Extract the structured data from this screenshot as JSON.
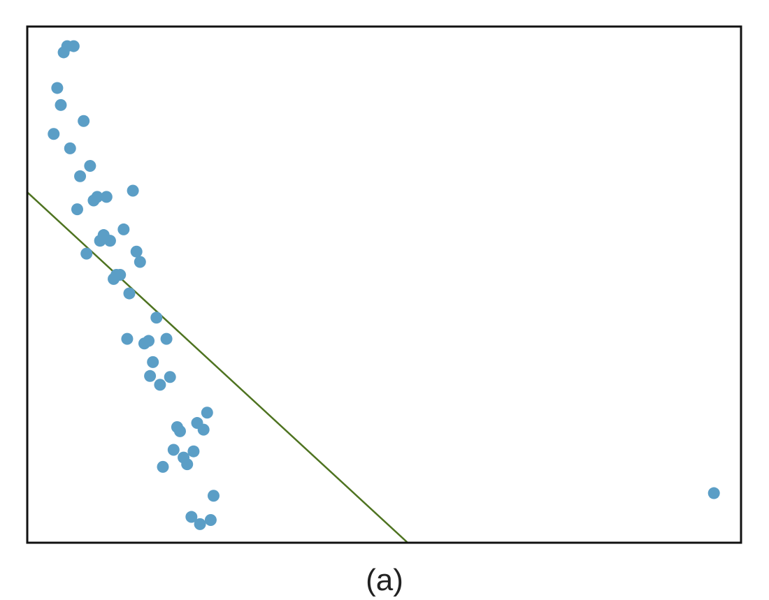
{
  "caption": "(a)",
  "chart_data": {
    "type": "scatter",
    "title": "",
    "xlabel": "",
    "ylabel": "",
    "xlim": [
      0,
      100
    ],
    "ylim": [
      0,
      100
    ],
    "grid": false,
    "axes_ticks": false,
    "point_color": "#5b9ec6",
    "line_color": "#4e7320",
    "frame_color": "#111111",
    "points": [
      {
        "x": 5.6,
        "y": 96.2
      },
      {
        "x": 6.5,
        "y": 96.2
      },
      {
        "x": 5.1,
        "y": 95.0
      },
      {
        "x": 4.2,
        "y": 88.1
      },
      {
        "x": 4.7,
        "y": 84.8
      },
      {
        "x": 7.9,
        "y": 81.7
      },
      {
        "x": 3.7,
        "y": 79.2
      },
      {
        "x": 6.0,
        "y": 76.4
      },
      {
        "x": 8.8,
        "y": 73.0
      },
      {
        "x": 7.4,
        "y": 71.0
      },
      {
        "x": 14.8,
        "y": 68.2
      },
      {
        "x": 9.3,
        "y": 66.3
      },
      {
        "x": 9.8,
        "y": 67.0
      },
      {
        "x": 11.1,
        "y": 67.0
      },
      {
        "x": 7.0,
        "y": 64.6
      },
      {
        "x": 13.5,
        "y": 60.7
      },
      {
        "x": 10.7,
        "y": 59.6
      },
      {
        "x": 10.2,
        "y": 58.5
      },
      {
        "x": 11.6,
        "y": 58.5
      },
      {
        "x": 8.3,
        "y": 56.0
      },
      {
        "x": 15.3,
        "y": 56.4
      },
      {
        "x": 15.8,
        "y": 54.4
      },
      {
        "x": 12.5,
        "y": 51.9
      },
      {
        "x": 13.0,
        "y": 51.9
      },
      {
        "x": 12.1,
        "y": 51.1
      },
      {
        "x": 14.3,
        "y": 48.3
      },
      {
        "x": 18.1,
        "y": 43.6
      },
      {
        "x": 14.0,
        "y": 39.5
      },
      {
        "x": 19.5,
        "y": 39.5
      },
      {
        "x": 16.4,
        "y": 38.6
      },
      {
        "x": 17.0,
        "y": 39.1
      },
      {
        "x": 17.6,
        "y": 35.0
      },
      {
        "x": 17.2,
        "y": 32.3
      },
      {
        "x": 20.0,
        "y": 32.1
      },
      {
        "x": 18.6,
        "y": 30.6
      },
      {
        "x": 25.2,
        "y": 25.2
      },
      {
        "x": 23.8,
        "y": 23.2
      },
      {
        "x": 21.0,
        "y": 22.4
      },
      {
        "x": 21.4,
        "y": 21.6
      },
      {
        "x": 24.7,
        "y": 21.9
      },
      {
        "x": 20.5,
        "y": 18.0
      },
      {
        "x": 23.3,
        "y": 17.7
      },
      {
        "x": 21.9,
        "y": 16.5
      },
      {
        "x": 22.4,
        "y": 15.2
      },
      {
        "x": 19.0,
        "y": 14.7
      },
      {
        "x": 26.1,
        "y": 9.1
      },
      {
        "x": 23.0,
        "y": 5.0
      },
      {
        "x": 25.7,
        "y": 4.4
      },
      {
        "x": 24.2,
        "y": 3.6
      },
      {
        "x": 96.2,
        "y": 9.6
      }
    ],
    "line": {
      "x": [
        0,
        53.3
      ],
      "y": [
        67.9,
        0
      ]
    }
  }
}
